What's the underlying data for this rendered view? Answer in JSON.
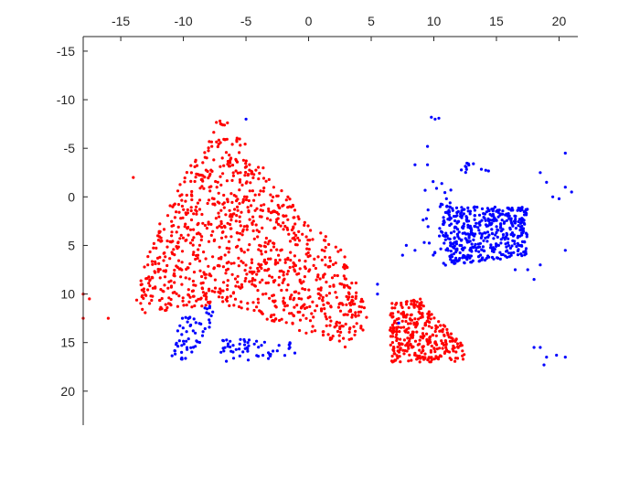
{
  "chart_data": {
    "type": "scatter",
    "title": "",
    "xlabel": "",
    "ylabel": "",
    "xlim": [
      -18,
      21.5
    ],
    "ylim": [
      -16.5,
      23.5
    ],
    "y_reversed": true,
    "x_axis_position": "top",
    "grid": false,
    "legend": "none",
    "x_ticks": [
      -15,
      -10,
      -5,
      0,
      5,
      10,
      15,
      20
    ],
    "y_ticks": [
      -15,
      -10,
      -5,
      0,
      5,
      10,
      15,
      20
    ],
    "x_tick_labels": [
      "-15",
      "-10",
      "-5",
      "0",
      "5",
      "10",
      "15",
      "20"
    ],
    "y_tick_labels": [
      "-15",
      "-10",
      "-5",
      "0",
      "5",
      "10",
      "15",
      "20"
    ],
    "series": [
      {
        "color": "#ff0000",
        "clusters": [
          {
            "polygon": [
              [
                -7,
                -8.5
              ],
              [
                -1,
                1
              ],
              [
                3,
                6
              ],
              [
                5,
                13
              ],
              [
                3,
                15.5
              ],
              [
                -7,
                11
              ],
              [
                -13,
                12
              ],
              [
                -14,
                10.5
              ],
              [
                -12,
                3
              ],
              [
                -10,
                -2
              ]
            ],
            "count": 1050
          },
          {
            "polygon": [
              [
                6.5,
                11
              ],
              [
                9,
                10.5
              ],
              [
                11,
                13.5
              ],
              [
                12.5,
                15.5
              ],
              [
                12.5,
                17
              ],
              [
                6.5,
                17
              ]
            ],
            "count": 330
          }
        ],
        "outliers": [
          [
            -14,
            -2
          ],
          [
            -18,
            10
          ],
          [
            -18,
            12.5
          ],
          [
            -16,
            12.5
          ],
          [
            -17.5,
            10.5
          ]
        ]
      },
      {
        "color": "#0000ff",
        "clusters": [
          {
            "polygon": [
              [
                11,
                1
              ],
              [
                17.5,
                1
              ],
              [
                17.5,
                6
              ],
              [
                15,
                6.5
              ],
              [
                11.5,
                7
              ],
              [
                10.5,
                4
              ]
            ],
            "count": 450
          },
          {
            "polygon": [
              [
                9,
                -1.5
              ],
              [
                12,
                -2
              ],
              [
                11,
                7.5
              ],
              [
                9,
                5
              ]
            ],
            "count": 30
          },
          {
            "polygon": [
              [
                -10.5,
                12.5
              ],
              [
                -7.5,
                11
              ],
              [
                -8,
                14
              ],
              [
                -10,
                17
              ],
              [
                -11,
                16.5
              ]
            ],
            "count": 60
          },
          {
            "polygon": [
              [
                -7,
                14.5
              ],
              [
                -1,
                15
              ],
              [
                -1,
                16.5
              ],
              [
                -7,
                17
              ]
            ],
            "count": 55
          },
          {
            "polygon": [
              [
                12,
                -3.5
              ],
              [
                14.5,
                -3.5
              ],
              [
                14.5,
                -2.5
              ],
              [
                12,
                -2.5
              ]
            ],
            "count": 12
          }
        ],
        "outliers": [
          [
            10.1,
            -8
          ],
          [
            10.4,
            -8.1
          ],
          [
            9.8,
            -8.2
          ],
          [
            9.5,
            -5.2
          ],
          [
            8.5,
            -3.3
          ],
          [
            9.5,
            -3.3
          ],
          [
            20.5,
            -4.5
          ],
          [
            18.5,
            -2.5
          ],
          [
            19,
            -1.5
          ],
          [
            20.5,
            -1
          ],
          [
            21,
            -0.5
          ],
          [
            19.5,
            0
          ],
          [
            20,
            0.2
          ],
          [
            18.5,
            7
          ],
          [
            17.5,
            7.5
          ],
          [
            18,
            8.5
          ],
          [
            20.5,
            5.5
          ],
          [
            16.5,
            7.5
          ],
          [
            18,
            15.5
          ],
          [
            18.5,
            15.5
          ],
          [
            19,
            16.5
          ],
          [
            20.5,
            16.5
          ],
          [
            19.8,
            16.3
          ],
          [
            18.8,
            17.3
          ],
          [
            5.5,
            9
          ],
          [
            5.5,
            10
          ],
          [
            -5,
            -8
          ],
          [
            7.2,
            13
          ],
          [
            7.5,
            6
          ],
          [
            7.8,
            5
          ],
          [
            8.5,
            5.5
          ],
          [
            -1.5,
            15.5
          ]
        ]
      }
    ]
  }
}
